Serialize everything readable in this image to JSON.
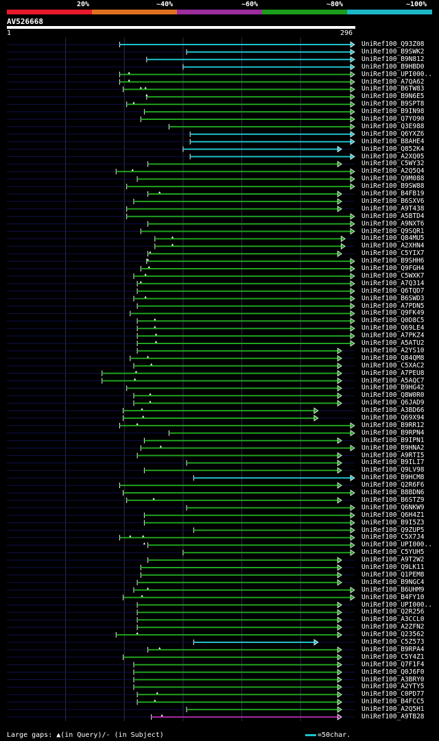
{
  "identity_scale": {
    "labels": [
      "20%",
      "~40%",
      "~60%",
      "~80%",
      "~100%"
    ],
    "colors": [
      "#e8192c",
      "#e07020",
      "#9c2d9c",
      "#1c9c1c",
      "#1cb8c8"
    ]
  },
  "query": {
    "name": "AV526668",
    "start": "1",
    "end": "296",
    "length": 296
  },
  "hit_colors": {
    "cyan": "#1fc2cc",
    "green": "#21a321",
    "purple": "#a32aa3",
    "guide": "#10104a",
    "grid": "#303050"
  },
  "hits": [
    {
      "name": "UniRef100_Q93Z08",
      "start": 96,
      "end": 296,
      "color": "cyan",
      "gaps": []
    },
    {
      "name": "UniRef100_B9SWK2",
      "start": 153,
      "end": 296,
      "color": "cyan",
      "gaps": []
    },
    {
      "name": "UniRef100_B9N812",
      "start": 119,
      "end": 296,
      "color": "cyan",
      "gaps": []
    },
    {
      "name": "UniRef100_B9HBD0",
      "start": 150,
      "end": 296,
      "color": "cyan",
      "gaps": []
    },
    {
      "name": "UniRef100_UPI000..",
      "start": 96,
      "end": 296,
      "color": "green",
      "gaps": [
        104
      ]
    },
    {
      "name": "UniRef100_A7QA62",
      "start": 96,
      "end": 296,
      "color": "green",
      "gaps": [
        104
      ]
    },
    {
      "name": "UniRef100_B6TW83",
      "start": 99,
      "end": 296,
      "color": "green",
      "gaps": [
        114,
        118
      ]
    },
    {
      "name": "UniRef100_B9N6E5",
      "start": 119,
      "end": 296,
      "color": "green",
      "gaps": [
        119
      ]
    },
    {
      "name": "UniRef100_B9SPT8",
      "start": 102,
      "end": 296,
      "color": "green",
      "gaps": [
        108
      ]
    },
    {
      "name": "UniRef100_B9IN98",
      "start": 117,
      "end": 296,
      "color": "green",
      "gaps": []
    },
    {
      "name": "UniRef100_Q7YO90",
      "start": 114,
      "end": 296,
      "color": "green",
      "gaps": []
    },
    {
      "name": "UniRef100_Q3E988",
      "start": 138,
      "end": 296,
      "color": "green",
      "gaps": []
    },
    {
      "name": "UniRef100_Q6YXZ6",
      "start": 156,
      "end": 296,
      "color": "cyan",
      "gaps": []
    },
    {
      "name": "UniRef100_B8AHE4",
      "start": 156,
      "end": 296,
      "color": "cyan",
      "gaps": []
    },
    {
      "name": "UniRef100_Q852K4",
      "start": 150,
      "end": 285,
      "color": "cyan",
      "gaps": []
    },
    {
      "name": "UniRef100_A2XQ05",
      "start": 156,
      "end": 296,
      "color": "cyan",
      "gaps": []
    },
    {
      "name": "UniRef100_C5WY32",
      "start": 120,
      "end": 285,
      "color": "green",
      "gaps": []
    },
    {
      "name": "UniRef100_A2Q5Q4",
      "start": 93,
      "end": 296,
      "color": "green",
      "gaps": [
        107
      ]
    },
    {
      "name": "UniRef100_Q9M088",
      "start": 111,
      "end": 296,
      "color": "green",
      "gaps": []
    },
    {
      "name": "UniRef100_B9SW88",
      "start": 102,
      "end": 296,
      "color": "green",
      "gaps": []
    },
    {
      "name": "UniRef100_B4FB19",
      "start": 120,
      "end": 285,
      "color": "green",
      "gaps": [
        130
      ]
    },
    {
      "name": "UniRef100_B6SXV6",
      "start": 108,
      "end": 285,
      "color": "green",
      "gaps": []
    },
    {
      "name": "UniRef100_A9T438",
      "start": 102,
      "end": 285,
      "color": "green",
      "gaps": []
    },
    {
      "name": "UniRef100_A5BTD4",
      "start": 102,
      "end": 296,
      "color": "green",
      "gaps": []
    },
    {
      "name": "UniRef100_A9NXT6",
      "start": 120,
      "end": 296,
      "color": "green",
      "gaps": []
    },
    {
      "name": "UniRef100_Q9SQR1",
      "start": 114,
      "end": 296,
      "color": "green",
      "gaps": []
    },
    {
      "name": "UniRef100_Q84MU5",
      "start": 126,
      "end": 288,
      "color": "green",
      "gaps": [
        141
      ]
    },
    {
      "name": "UniRef100_A2XHN4",
      "start": 126,
      "end": 288,
      "color": "green",
      "gaps": [
        141
      ]
    },
    {
      "name": "UniRef100_C5YIX7",
      "start": 120,
      "end": 285,
      "color": "green",
      "gaps": [
        122
      ]
    },
    {
      "name": "UniRef100_B9SHH6",
      "start": 119,
      "end": 296,
      "color": "green",
      "gaps": [
        120
      ]
    },
    {
      "name": "UniRef100_Q9FGH4",
      "start": 114,
      "end": 296,
      "color": "green",
      "gaps": [
        121
      ]
    },
    {
      "name": "UniRef100_C5WXK7",
      "start": 108,
      "end": 296,
      "color": "green",
      "gaps": [
        118
      ]
    },
    {
      "name": "UniRef100_A7Q314",
      "start": 111,
      "end": 296,
      "color": "green",
      "gaps": [
        114
      ]
    },
    {
      "name": "UniRef100_Q6TQD7",
      "start": 111,
      "end": 296,
      "color": "green",
      "gaps": []
    },
    {
      "name": "UniRef100_B6SWD3",
      "start": 108,
      "end": 296,
      "color": "green",
      "gaps": [
        118
      ]
    },
    {
      "name": "UniRef100_A7PDN5",
      "start": 111,
      "end": 296,
      "color": "green",
      "gaps": []
    },
    {
      "name": "UniRef100_Q9FK49",
      "start": 105,
      "end": 296,
      "color": "green",
      "gaps": []
    },
    {
      "name": "UniRef100_Q0D8C5",
      "start": 111,
      "end": 296,
      "color": "green",
      "gaps": [
        126
      ]
    },
    {
      "name": "UniRef100_Q69LE4",
      "start": 111,
      "end": 296,
      "color": "green",
      "gaps": [
        126
      ]
    },
    {
      "name": "UniRef100_A7PKZ4",
      "start": 111,
      "end": 296,
      "color": "green",
      "gaps": [
        127
      ]
    },
    {
      "name": "UniRef100_A5ATU2",
      "start": 111,
      "end": 296,
      "color": "green",
      "gaps": [
        127
      ]
    },
    {
      "name": "UniRef100_A2YS10",
      "start": 111,
      "end": 285,
      "color": "green",
      "gaps": []
    },
    {
      "name": "UniRef100_Q84QM8",
      "start": 105,
      "end": 285,
      "color": "green",
      "gaps": [
        120
      ]
    },
    {
      "name": "UniRef100_C5XAC2",
      "start": 108,
      "end": 285,
      "color": "green",
      "gaps": [
        123
      ]
    },
    {
      "name": "UniRef100_A7PEU8",
      "start": 81,
      "end": 285,
      "color": "green",
      "gaps": [
        110
      ]
    },
    {
      "name": "UniRef100_A5AQC7",
      "start": 81,
      "end": 285,
      "color": "green",
      "gaps": [
        109
      ]
    },
    {
      "name": "UniRef100_B9HG42",
      "start": 102,
      "end": 285,
      "color": "green",
      "gaps": []
    },
    {
      "name": "UniRef100_Q8W0R0",
      "start": 108,
      "end": 285,
      "color": "green",
      "gaps": [
        122
      ]
    },
    {
      "name": "UniRef100_Q6JAD9",
      "start": 108,
      "end": 285,
      "color": "green",
      "gaps": [
        122
      ]
    },
    {
      "name": "UniRef100_A3BD66",
      "start": 99,
      "end": 265,
      "color": "green",
      "gaps": [
        115
      ]
    },
    {
      "name": "UniRef100_Q69X94",
      "start": 99,
      "end": 265,
      "color": "green",
      "gaps": [
        116
      ]
    },
    {
      "name": "UniRef100_B9RR12",
      "start": 96,
      "end": 296,
      "color": "green",
      "gaps": [
        111
      ]
    },
    {
      "name": "UniRef100_B9RPN4",
      "start": 138,
      "end": 296,
      "color": "green",
      "gaps": []
    },
    {
      "name": "UniRef100_B9IPN1",
      "start": 117,
      "end": 285,
      "color": "green",
      "gaps": []
    },
    {
      "name": "UniRef100_B9HNA2",
      "start": 114,
      "end": 296,
      "color": "green",
      "gaps": [
        131
      ]
    },
    {
      "name": "UniRef100_A9RTI5",
      "start": 111,
      "end": 285,
      "color": "green",
      "gaps": []
    },
    {
      "name": "UniRef100_B9ILI7",
      "start": 153,
      "end": 285,
      "color": "green",
      "gaps": []
    },
    {
      "name": "UniRef100_Q9LV98",
      "start": 117,
      "end": 285,
      "color": "green",
      "gaps": []
    },
    {
      "name": "UniRef100_B9HCM8",
      "start": 159,
      "end": 296,
      "color": "cyan",
      "gaps": []
    },
    {
      "name": "UniRef100_Q2R6F6",
      "start": 96,
      "end": 285,
      "color": "green",
      "gaps": []
    },
    {
      "name": "UniRef100_B8BDN6",
      "start": 99,
      "end": 296,
      "color": "green",
      "gaps": []
    },
    {
      "name": "UniRef100_B6STZ9",
      "start": 102,
      "end": 285,
      "color": "green",
      "gaps": [
        125
      ]
    },
    {
      "name": "UniRef100_Q6NKW9",
      "start": 153,
      "end": 296,
      "color": "green",
      "gaps": []
    },
    {
      "name": "UniRef100_Q6H4Z1",
      "start": 117,
      "end": 296,
      "color": "green",
      "gaps": []
    },
    {
      "name": "UniRef100_B9I5Z3",
      "start": 117,
      "end": 296,
      "color": "green",
      "gaps": []
    },
    {
      "name": "UniRef100_Q9ZUP5",
      "start": 159,
      "end": 296,
      "color": "green",
      "gaps": []
    },
    {
      "name": "UniRef100_C5X7J4",
      "start": 96,
      "end": 296,
      "color": "green",
      "gaps": [
        105,
        116
      ]
    },
    {
      "name": "UniRef100_UPI000..",
      "start": 120,
      "end": 296,
      "color": "green",
      "gaps": [
        117
      ]
    },
    {
      "name": "UniRef100_C5YUH5",
      "start": 150,
      "end": 296,
      "color": "green",
      "gaps": []
    },
    {
      "name": "UniRef100_A9T2W2",
      "start": 120,
      "end": 285,
      "color": "green",
      "gaps": []
    },
    {
      "name": "UniRef100_Q9LK11",
      "start": 114,
      "end": 285,
      "color": "green",
      "gaps": []
    },
    {
      "name": "UniRef100_Q1PEM8",
      "start": 114,
      "end": 285,
      "color": "green",
      "gaps": []
    },
    {
      "name": "UniRef100_B9NGC4",
      "start": 111,
      "end": 285,
      "color": "green",
      "gaps": []
    },
    {
      "name": "UniRef100_B6UHM9",
      "start": 108,
      "end": 296,
      "color": "green",
      "gaps": [
        120
      ]
    },
    {
      "name": "UniRef100_B4FY10",
      "start": 99,
      "end": 296,
      "color": "green",
      "gaps": [
        115
      ]
    },
    {
      "name": "UniRef100_UPI000..",
      "start": 111,
      "end": 285,
      "color": "green",
      "gaps": []
    },
    {
      "name": "UniRef100_Q2R256",
      "start": 111,
      "end": 285,
      "color": "green",
      "gaps": []
    },
    {
      "name": "UniRef100_A3CCL0",
      "start": 111,
      "end": 285,
      "color": "green",
      "gaps": []
    },
    {
      "name": "UniRef100_A2ZFN2",
      "start": 111,
      "end": 285,
      "color": "green",
      "gaps": []
    },
    {
      "name": "UniRef100_Q23562",
      "start": 93,
      "end": 285,
      "color": "green",
      "gaps": [
        111
      ]
    },
    {
      "name": "UniRef100_C5Z573",
      "start": 159,
      "end": 265,
      "color": "cyan",
      "gaps": []
    },
    {
      "name": "UniRef100_B9RPA4",
      "start": 120,
      "end": 285,
      "color": "green",
      "gaps": [
        130
      ]
    },
    {
      "name": "UniRef100_C5Y4Z1",
      "start": 99,
      "end": 285,
      "color": "green",
      "gaps": []
    },
    {
      "name": "UniRef100_Q7F1F4",
      "start": 108,
      "end": 285,
      "color": "green",
      "gaps": []
    },
    {
      "name": "UniRef100_Q0J6F0",
      "start": 108,
      "end": 285,
      "color": "green",
      "gaps": []
    },
    {
      "name": "UniRef100_A3BRY0",
      "start": 108,
      "end": 285,
      "color": "green",
      "gaps": []
    },
    {
      "name": "UniRef100_A2YTY5",
      "start": 108,
      "end": 285,
      "color": "green",
      "gaps": []
    },
    {
      "name": "UniRef100_C0PD77",
      "start": 111,
      "end": 285,
      "color": "green",
      "gaps": [
        128
      ]
    },
    {
      "name": "UniRef100_B4FCC5",
      "start": 111,
      "end": 285,
      "color": "green",
      "gaps": [
        126
      ]
    },
    {
      "name": "UniRef100_A2Q5H1",
      "start": 153,
      "end": 285,
      "color": "green",
      "gaps": []
    },
    {
      "name": "UniRef100_A9TB28",
      "start": 123,
      "end": 285,
      "color": "purple",
      "gaps": [
        132
      ]
    }
  ],
  "legend": {
    "text": "Large gaps: ▲(in Query)/- (in Subject)",
    "scale_key": "=50char."
  }
}
